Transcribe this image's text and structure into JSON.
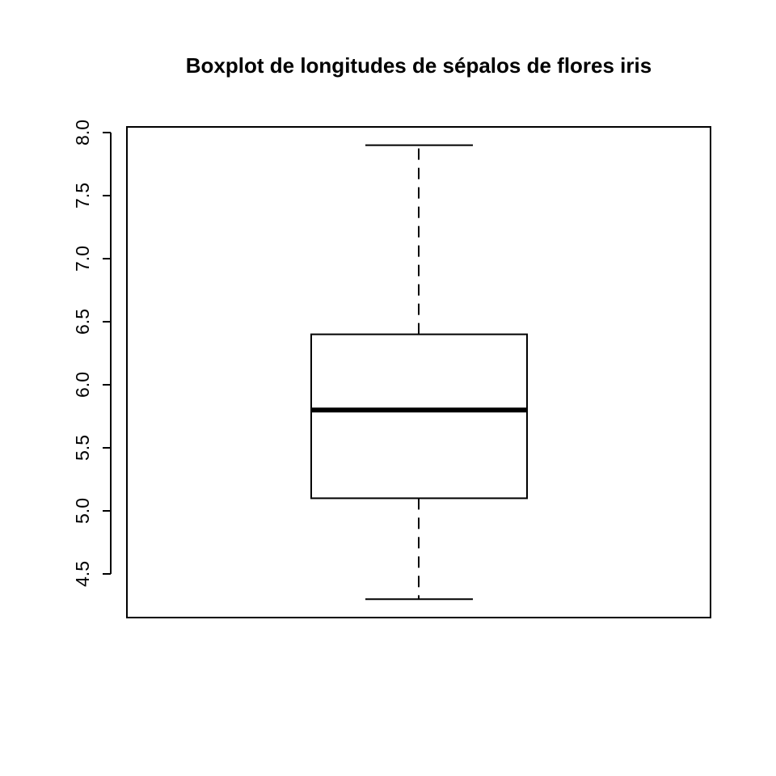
{
  "chart_data": {
    "type": "boxplot",
    "title": "Boxplot de longitudes de sépalos de flores iris",
    "xlabel": "",
    "ylabel": "",
    "yticks": [
      "4.5",
      "5.0",
      "5.5",
      "6.0",
      "6.5",
      "7.0",
      "7.5",
      "8.0"
    ],
    "ylim": [
      4.2,
      8.0
    ],
    "grid": false,
    "stats": {
      "min": 4.3,
      "q1": 5.1,
      "median": 5.8,
      "q3": 6.4,
      "max": 7.9
    },
    "colors": {
      "stroke": "#000000",
      "background": "#ffffff"
    }
  }
}
